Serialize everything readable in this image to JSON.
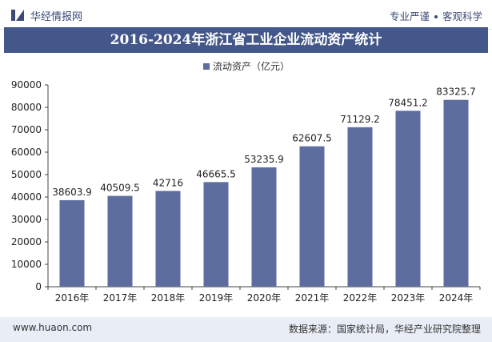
{
  "header": {
    "site_name": "华经情报网",
    "tagline_left": "专业严谨",
    "tagline_right": "客观科学"
  },
  "chart_data": {
    "type": "bar",
    "title": "2016-2024年浙江省工业企业流动资产统计",
    "categories": [
      "2016年",
      "2017年",
      "2018年",
      "2019年",
      "2020年",
      "2021年",
      "2022年",
      "2023年",
      "2024年"
    ],
    "series": [
      {
        "name": "流动资产（亿元）",
        "values": [
          38603.9,
          40509.5,
          42716,
          46665.5,
          53235.9,
          62607.5,
          71129.2,
          78451.2,
          83325.7
        ],
        "labels": [
          "38603.9",
          "40509.5",
          "42716",
          "46665.5",
          "53235.9",
          "62607.5",
          "71129.2",
          "78451.2",
          "83325.7"
        ],
        "color": "#5d6e9e"
      }
    ],
    "ylim": [
      0,
      90000
    ],
    "yticks": [
      "0",
      "10000",
      "20000",
      "30000",
      "40000",
      "50000",
      "60000",
      "70000",
      "80000",
      "90000"
    ],
    "grid": false,
    "legend_position": "top"
  },
  "footer": {
    "url": "www.huaon.com",
    "source": "数据来源：国家统计局，华经产业研究院整理"
  }
}
